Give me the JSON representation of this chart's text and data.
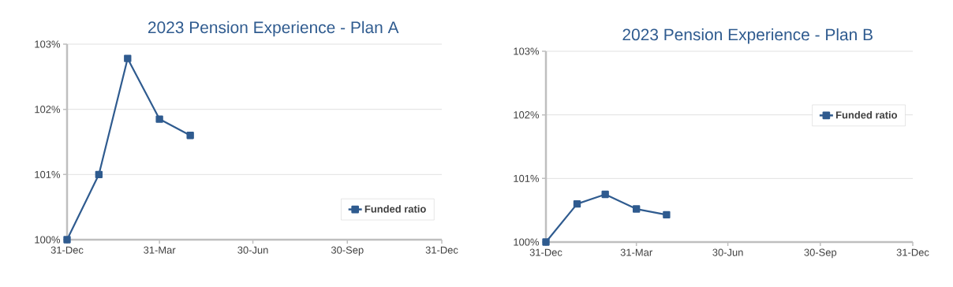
{
  "chart_data": [
    {
      "type": "line",
      "title": "2023 Pension Experience - Plan A",
      "x": [
        "2022-12-31",
        "2023-01-31",
        "2023-02-28",
        "2023-03-31",
        "2023-04-30"
      ],
      "series": [
        {
          "name": "Funded ratio",
          "color": "#2f5b8f",
          "values": [
            100.0,
            101.0,
            102.78,
            101.85,
            101.6
          ]
        }
      ],
      "xlim": [
        "2022-12-31",
        "2023-12-31"
      ],
      "xticks": [
        {
          "value": "2022-12-31",
          "label": "31-Dec"
        },
        {
          "value": "2023-03-31",
          "label": "31-Mar"
        },
        {
          "value": "2023-06-30",
          "label": "30-Jun"
        },
        {
          "value": "2023-09-30",
          "label": "30-Sep"
        },
        {
          "value": "2023-12-31",
          "label": "31-Dec"
        }
      ],
      "ylim": [
        100,
        103
      ],
      "yticks": [
        {
          "value": 100,
          "label": "100%"
        },
        {
          "value": 101,
          "label": "101%"
        },
        {
          "value": 102,
          "label": "102%"
        },
        {
          "value": 103,
          "label": "103%"
        }
      ],
      "grid": "y",
      "legend": "bottom right",
      "marker": "square",
      "line_style": "solid"
    },
    {
      "type": "line",
      "title": "2023 Pension Experience - Plan B",
      "x": [
        "2022-12-31",
        "2023-01-31",
        "2023-02-28",
        "2023-03-31",
        "2023-04-30"
      ],
      "series": [
        {
          "name": "Funded ratio",
          "color": "#2f5b8f",
          "values": [
            100.0,
            100.6,
            100.75,
            100.52,
            100.43
          ]
        }
      ],
      "xlim": [
        "2022-12-31",
        "2023-12-31"
      ],
      "xticks": [
        {
          "value": "2022-12-31",
          "label": "31-Dec"
        },
        {
          "value": "2023-03-31",
          "label": "31-Mar"
        },
        {
          "value": "2023-06-30",
          "label": "30-Jun"
        },
        {
          "value": "2023-09-30",
          "label": "30-Sep"
        },
        {
          "value": "2023-12-31",
          "label": "31-Dec"
        }
      ],
      "ylim": [
        100,
        103
      ],
      "yticks": [
        {
          "value": 100,
          "label": "100%"
        },
        {
          "value": 101,
          "label": "101%"
        },
        {
          "value": 102,
          "label": "102%"
        },
        {
          "value": 103,
          "label": "103%"
        }
      ],
      "grid": "y",
      "legend": "top right",
      "marker": "square",
      "line_style": "solid"
    }
  ]
}
